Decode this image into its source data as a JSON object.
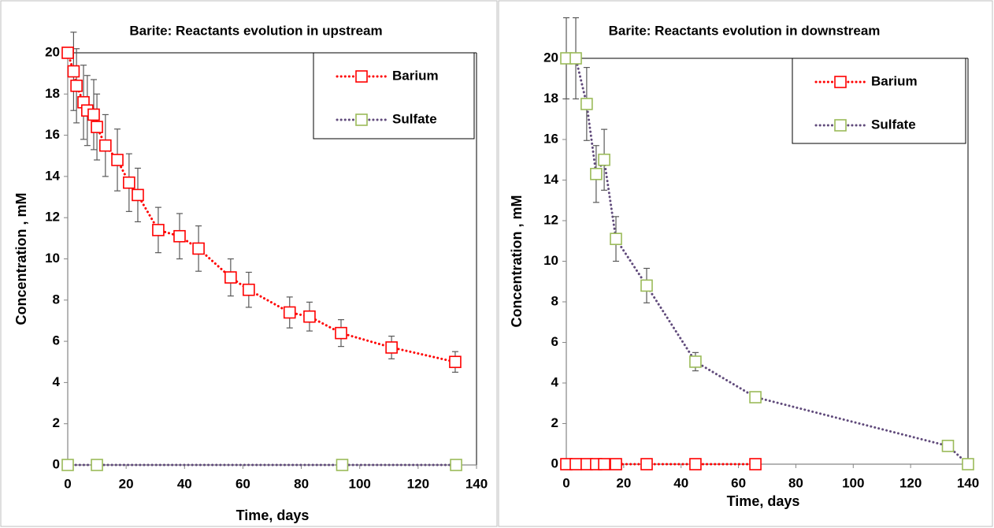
{
  "chart_data": [
    {
      "type": "scatter",
      "title": "Barite: Reactants evolution in upstream",
      "xlabel": "Time, days",
      "ylabel": "Concentration , mM",
      "xlim": [
        0,
        140
      ],
      "ylim": [
        0,
        20
      ],
      "xticks": [
        0,
        20,
        40,
        60,
        80,
        100,
        120,
        140
      ],
      "yticks": [
        0,
        2,
        4,
        6,
        8,
        10,
        12,
        14,
        16,
        18,
        20
      ],
      "legend": "upper right",
      "series": [
        {
          "name": "Barium",
          "color": "#ff0000",
          "marker_color": "#ff0000",
          "x": [
            0,
            2,
            3,
            5.4,
            6.7,
            8.9,
            10,
            12.9,
            17,
            21,
            24,
            31,
            38.3,
            44.8,
            55.8,
            62,
            76,
            82.8,
            93.6,
            110.9,
            132.7
          ],
          "values": [
            20,
            19.1,
            18.4,
            17.6,
            17.2,
            17.0,
            16.4,
            15.5,
            14.8,
            13.7,
            13.1,
            11.4,
            11.1,
            10.5,
            9.1,
            8.5,
            7.4,
            7.2,
            6.4,
            5.7,
            5.0
          ],
          "errors": [
            0,
            1.9,
            1.8,
            1.8,
            1.7,
            1.7,
            1.6,
            1.5,
            1.5,
            1.4,
            1.3,
            1.1,
            1.1,
            1.1,
            0.9,
            0.85,
            0.75,
            0.7,
            0.65,
            0.55,
            0.5
          ]
        },
        {
          "name": "Sulfate",
          "color": "#604a7b",
          "marker_color": "#9bbb59",
          "x": [
            0,
            10,
            94,
            133
          ],
          "values": [
            0,
            0,
            0,
            0
          ]
        }
      ]
    },
    {
      "type": "scatter",
      "title": "Barite: Reactants evolution in downstream",
      "xlabel": "Time, days",
      "ylabel": "Concentration , mM",
      "xlim": [
        0,
        140
      ],
      "ylim": [
        0,
        20
      ],
      "xticks": [
        0,
        20,
        40,
        60,
        80,
        100,
        120,
        140
      ],
      "yticks": [
        0,
        2,
        4,
        6,
        8,
        10,
        12,
        14,
        16,
        18,
        20
      ],
      "legend": "upper right",
      "series": [
        {
          "name": "Barium",
          "color": "#ff0000",
          "marker_color": "#ff0000",
          "x": [
            0,
            3.3,
            7.1,
            10.4,
            13.2,
            17.3,
            28,
            45,
            65.9
          ],
          "values": [
            0,
            0,
            0,
            0,
            0,
            0,
            0,
            0,
            0
          ]
        },
        {
          "name": "Sulfate",
          "color": "#604a7b",
          "marker_color": "#9bbb59",
          "x": [
            0,
            3.3,
            7.1,
            10.4,
            13.2,
            17.3,
            28,
            45,
            65.9,
            133,
            140
          ],
          "values": [
            20,
            20,
            17.75,
            14.3,
            15.0,
            11.1,
            8.8,
            5.05,
            3.3,
            0.9,
            0
          ],
          "errors": [
            2.0,
            2.0,
            1.8,
            1.4,
            1.5,
            1.1,
            0.85,
            0.45,
            0.2,
            0,
            0
          ]
        }
      ]
    }
  ]
}
